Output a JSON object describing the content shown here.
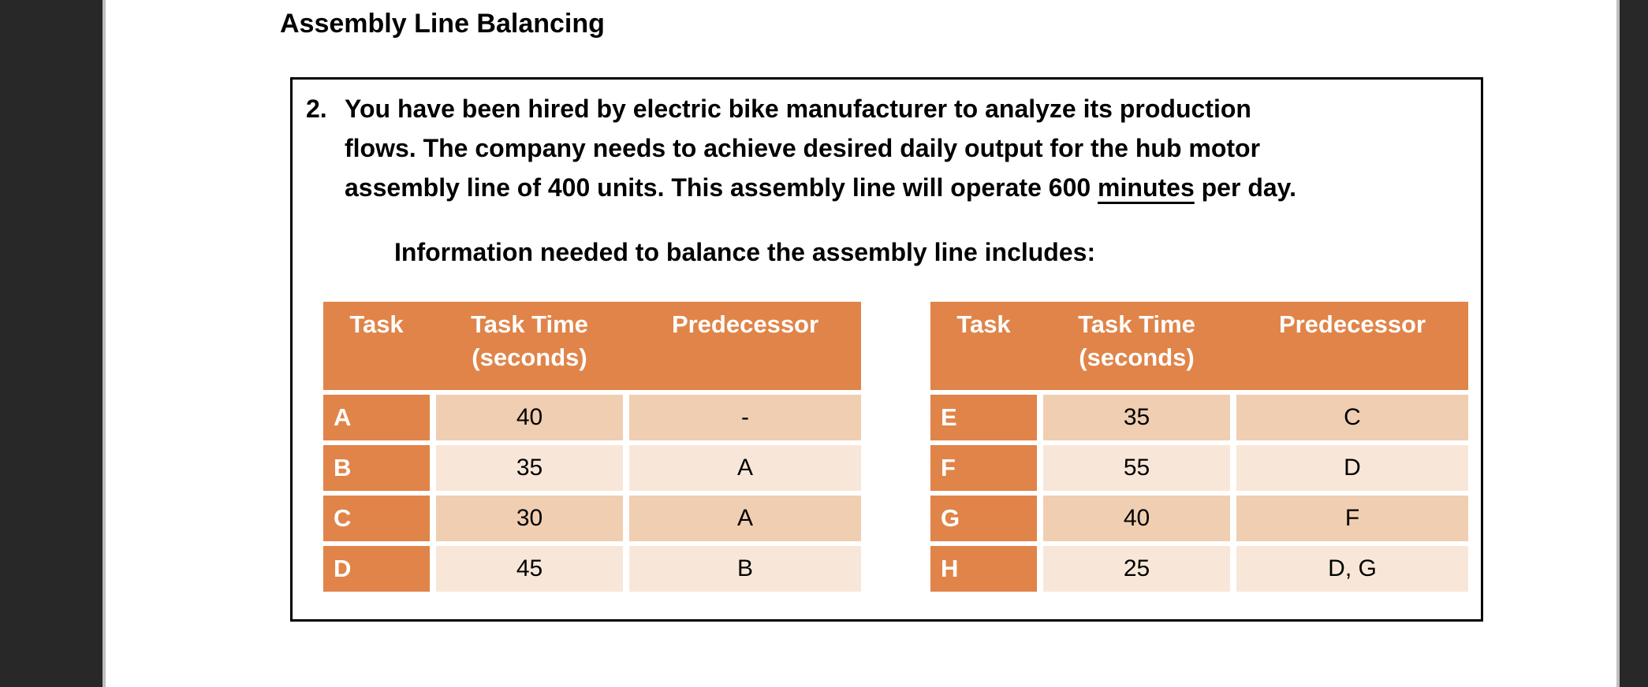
{
  "title": "Assembly Line Balancing",
  "problem": {
    "number": "2.",
    "line1": "You have been hired by electric bike manufacturer to analyze its production",
    "line2": "flows. The company needs to achieve desired daily output for the hub motor",
    "line3_prefix": "assembly line of 400 units. This assembly line will operate 600 ",
    "line3_underlined": "minutes",
    "line3_suffix": " per day.",
    "info_line": "Information needed to balance the assembly line includes:"
  },
  "table_headers": {
    "task": "Task",
    "time_line1": "Task Time",
    "time_line2": "(seconds)",
    "predecessor": "Predecessor"
  },
  "table_left": {
    "rows": [
      {
        "task": "A",
        "time": "40",
        "predecessor": "-"
      },
      {
        "task": "B",
        "time": "35",
        "predecessor": "A"
      },
      {
        "task": "C",
        "time": "30",
        "predecessor": "A"
      },
      {
        "task": "D",
        "time": "45",
        "predecessor": "B"
      }
    ]
  },
  "table_right": {
    "rows": [
      {
        "task": "E",
        "time": "35",
        "predecessor": "C"
      },
      {
        "task": "F",
        "time": "55",
        "predecessor": "D"
      },
      {
        "task": "G",
        "time": "40",
        "predecessor": "F"
      },
      {
        "task": "H",
        "time": "25",
        "predecessor": "D, G"
      }
    ]
  },
  "colors": {
    "table_header_orange": "#E08449",
    "row_band_dark": "#F0CEB1",
    "row_band_light": "#F8E7D8",
    "surround_dark": "#282828",
    "page_white": "#FFFFFF"
  }
}
